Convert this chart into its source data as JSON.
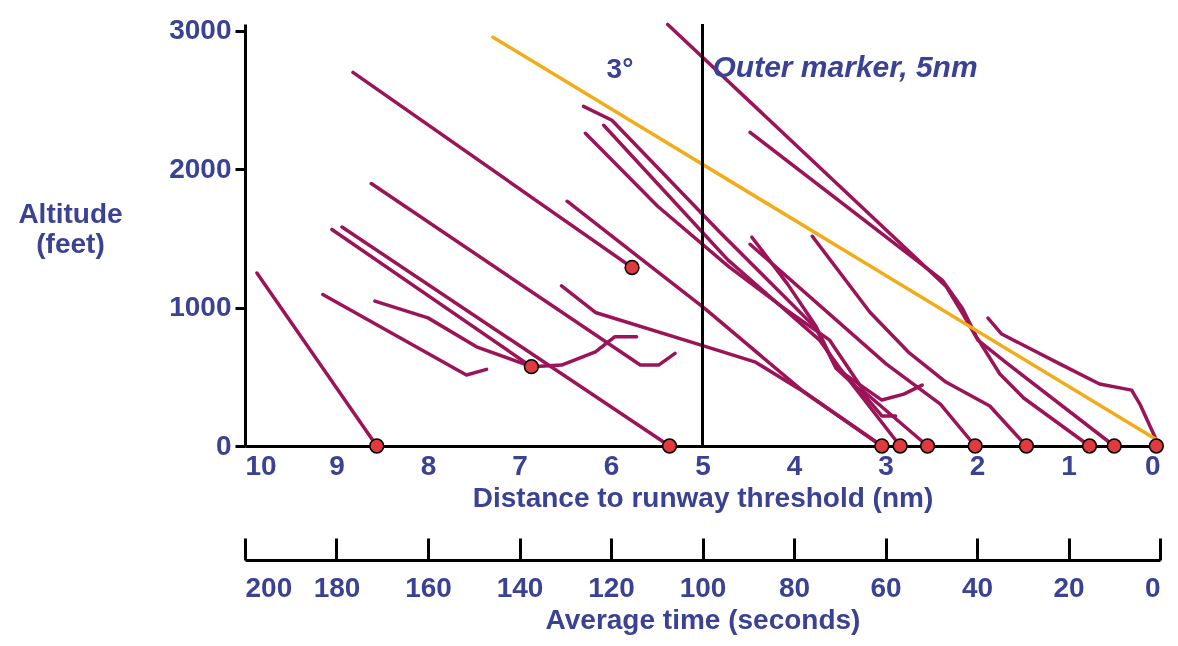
{
  "chart_data": {
    "type": "line",
    "xlabel": "Distance to runway threshold (nm)",
    "ylabel": "Altitude (feet)",
    "xlim": [
      10,
      0
    ],
    "xticks": [
      10,
      9,
      8,
      7,
      6,
      5,
      4,
      3,
      2,
      1,
      0
    ],
    "ylim": [
      0,
      3050
    ],
    "yticks": [
      0,
      1000,
      2000,
      3000
    ],
    "x2label": "Average time (seconds)",
    "x2lim": [
      200,
      0
    ],
    "x2ticks": [
      200,
      180,
      160,
      140,
      120,
      100,
      80,
      60,
      40,
      20,
      0
    ],
    "ref_lines": [
      {
        "axis": "x",
        "value": 5,
        "label": "Outer marker, 5nm",
        "color": "#000000"
      }
    ],
    "annotations": [
      "3°"
    ],
    "series": [
      {
        "color": "#9c1458",
        "x": [
          9.87,
          8.56
        ],
        "values": [
          1250,
          0
        ]
      },
      {
        "color": "#9c1458",
        "x": [
          8.82,
          5.77
        ],
        "values": [
          2700,
          1290
        ]
      },
      {
        "color": "#9c1458",
        "x": [
          9.05,
          6.87
        ],
        "values": [
          1565,
          573
        ]
      },
      {
        "color": "#9c1458",
        "x": [
          8.94,
          5.36
        ],
        "values": [
          1583,
          0
        ]
      },
      {
        "color": "#9c1458",
        "x": [
          8.62,
          5.68,
          5.48,
          5.3
        ],
        "values": [
          1897,
          585,
          585,
          669
        ]
      },
      {
        "color": "#9c1458",
        "x": [
          8.58,
          8.0,
          7.47,
          6.87,
          6.54,
          6.17,
          5.96,
          5.72
        ],
        "values": [
          1047,
          926,
          717,
          573,
          585,
          681,
          789,
          789
        ]
      },
      {
        "color": "#9c1458",
        "x": [
          9.15,
          7.58,
          7.36
        ],
        "values": [
          1095,
          513,
          554
        ]
      },
      {
        "color": "#9c1458",
        "x": [
          6.48,
          4.98,
          3.89,
          3.04
        ],
        "values": [
          1769,
          996,
          390,
          0
        ]
      },
      {
        "color": "#9c1458",
        "x": [
          6.54,
          6.17,
          4.98,
          4.42,
          3.89,
          3.04
        ],
        "values": [
          1157,
          965,
          722,
          606,
          390,
          0
        ]
      },
      {
        "color": "#9c1458",
        "x": [
          6.3,
          5.99,
          4.81,
          3.76,
          3.54,
          3.26,
          3.04,
          2.89
        ],
        "values": [
          2455,
          2354,
          1545,
          852,
          563,
          390,
          217,
          217
        ]
      },
      {
        "color": "#9c1458",
        "x": [
          6.08,
          4.72,
          3.72,
          3.5,
          2.84
        ],
        "values": [
          2318,
          1343,
          765,
          563,
          0
        ]
      },
      {
        "color": "#9c1458",
        "x": [
          6.28,
          5.49,
          4.72,
          4.11,
          3.61,
          3.23,
          2.54
        ],
        "values": [
          2260,
          1733,
          1300,
          996,
          765,
          390,
          0
        ]
      },
      {
        "color": "#9c1458",
        "x": [
          4.46,
          4.07,
          3.76,
          3.54,
          3.04,
          2.8,
          2.6
        ],
        "values": [
          1509,
          1170,
          866,
          563,
          332,
          375,
          440
        ]
      },
      {
        "color": "#9c1458",
        "x": [
          4.48,
          2.99,
          2.4,
          2.02
        ],
        "values": [
          1458,
          592,
          303,
          0
        ]
      },
      {
        "color": "#9c1458",
        "x": [
          3.8,
          3.17,
          2.75,
          2.34,
          1.86,
          1.46
        ],
        "values": [
          1516,
          967,
          679,
          462,
          289,
          0
        ]
      },
      {
        "color": "#9c1458",
        "x": [
          4.48,
          2.38,
          2.16,
          2.01,
          1.75,
          1.49,
          0.77
        ],
        "values": [
          2267,
          1199,
          996,
          794,
          520,
          347,
          0
        ]
      },
      {
        "color": "#9c1458",
        "x": [
          5.38,
          2.34,
          2.14,
          1.99,
          1.66,
          0.5
        ],
        "values": [
          3047,
          1155,
          939,
          765,
          592,
          0
        ]
      },
      {
        "color": "#9c1458",
        "x": [
          1.88,
          1.73,
          1.09,
          0.66,
          0.31,
          0.22,
          0.04
        ],
        "values": [
          924,
          809,
          592,
          448,
          404,
          303,
          43
        ]
      },
      {
        "color": "#f2ac1a",
        "x": [
          7.29,
          0
        ],
        "values": [
          2955,
          30
        ]
      },
      {
        "type": "scatter",
        "marker": "circle",
        "color": "#e03a3e",
        "x": [
          8.56,
          5.77,
          6.87,
          5.36,
          3.04,
          2.84,
          2.54,
          2.02,
          1.46,
          0.77,
          0.5,
          0.04
        ],
        "values": [
          0,
          1290,
          573,
          0,
          0,
          0,
          0,
          0,
          0,
          0,
          0,
          0
        ]
      }
    ]
  }
}
